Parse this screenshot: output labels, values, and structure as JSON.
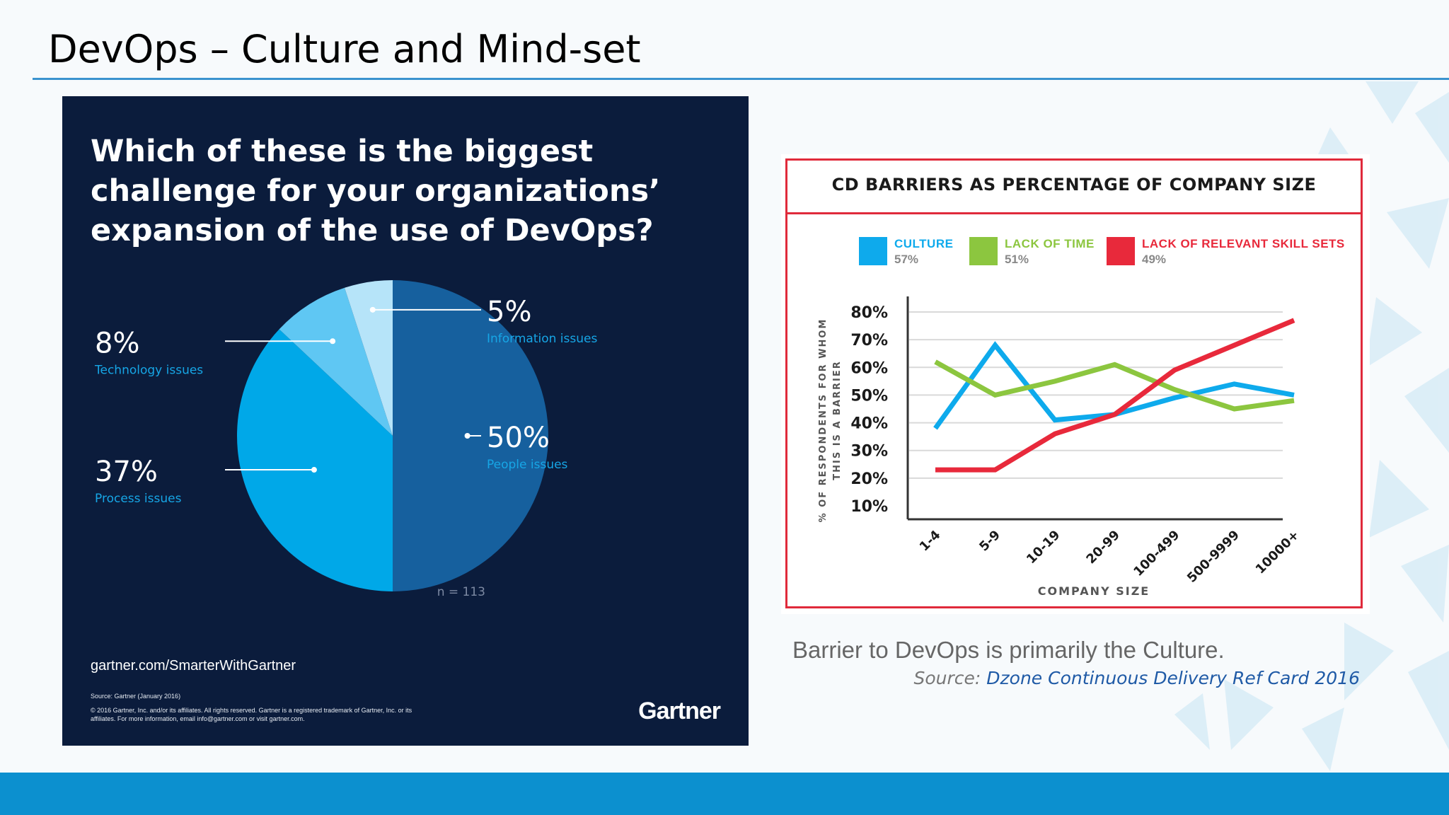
{
  "slide": {
    "title": "DevOps – Culture and Mind-set",
    "caption": "Barrier to DevOps is primarily the Culture.",
    "source_label": "Source:",
    "source_ref": "Dzone Continuous Delivery Ref Card 2016"
  },
  "gartner": {
    "question_lines": [
      "Which of these is the biggest",
      "challenge for your organizations’",
      "expansion of the use of DevOps?"
    ],
    "website": "gartner.com/SmarterWithGartner",
    "source_note": "Source: Gartner (January 2016)",
    "copyright": "© 2016 Gartner, Inc. and/or its affiliates. All rights reserved. Gartner is a registered trademark of Gartner, Inc. or its affiliates. For more information, email info@gartner.com or visit gartner.com.",
    "logo": "Gartner",
    "n_label": "n = 113"
  },
  "chart_data": [
    {
      "type": "pie",
      "title": "Which of these is the biggest challenge for your organizations’ expansion of the use of DevOps?",
      "slices": [
        {
          "pct": 50,
          "pct_label": "50%",
          "label": "People issues",
          "color": "#16609e"
        },
        {
          "pct": 37,
          "pct_label": "37%",
          "label": "Process issues",
          "color": "#00a8e8"
        },
        {
          "pct": 8,
          "pct_label": "8%",
          "label": "Technology issues",
          "color": "#5fc7f3"
        },
        {
          "pct": 5,
          "pct_label": "5%",
          "label": "Information issues",
          "color": "#b6e4f9"
        }
      ]
    },
    {
      "type": "line",
      "title": "CD BARRIERS AS PERCENTAGE OF COMPANY SIZE",
      "xlabel": "COMPANY SIZE",
      "ylabel_lines": [
        "% OF RESPONDENTS FOR WHOM",
        "THIS IS A BARRIER"
      ],
      "categories": [
        "1-4",
        "5-9",
        "10-19",
        "20-99",
        "100-499",
        "500-9999",
        "10000+"
      ],
      "yticks": [
        10,
        20,
        30,
        40,
        50,
        60,
        70,
        80
      ],
      "ytick_labels": [
        "10%",
        "20%",
        "30%",
        "40%",
        "50%",
        "60%",
        "70%",
        "80%"
      ],
      "ylim": [
        10,
        80
      ],
      "grid": true,
      "legend_position": "top",
      "series": [
        {
          "name": "CULTURE",
          "total": "57%",
          "color": "#0eaaec",
          "values": [
            38,
            68,
            41,
            43,
            49,
            54,
            50
          ]
        },
        {
          "name": "LACK OF TIME",
          "total": "51%",
          "color": "#8cc63f",
          "values": [
            62,
            50,
            55,
            61,
            52,
            45,
            48
          ]
        },
        {
          "name": "LACK OF RELEVANT SKILL SETS",
          "total": "49%",
          "color": "#e8293b",
          "values": [
            23,
            23,
            36,
            43,
            59,
            68,
            77
          ]
        }
      ]
    }
  ]
}
